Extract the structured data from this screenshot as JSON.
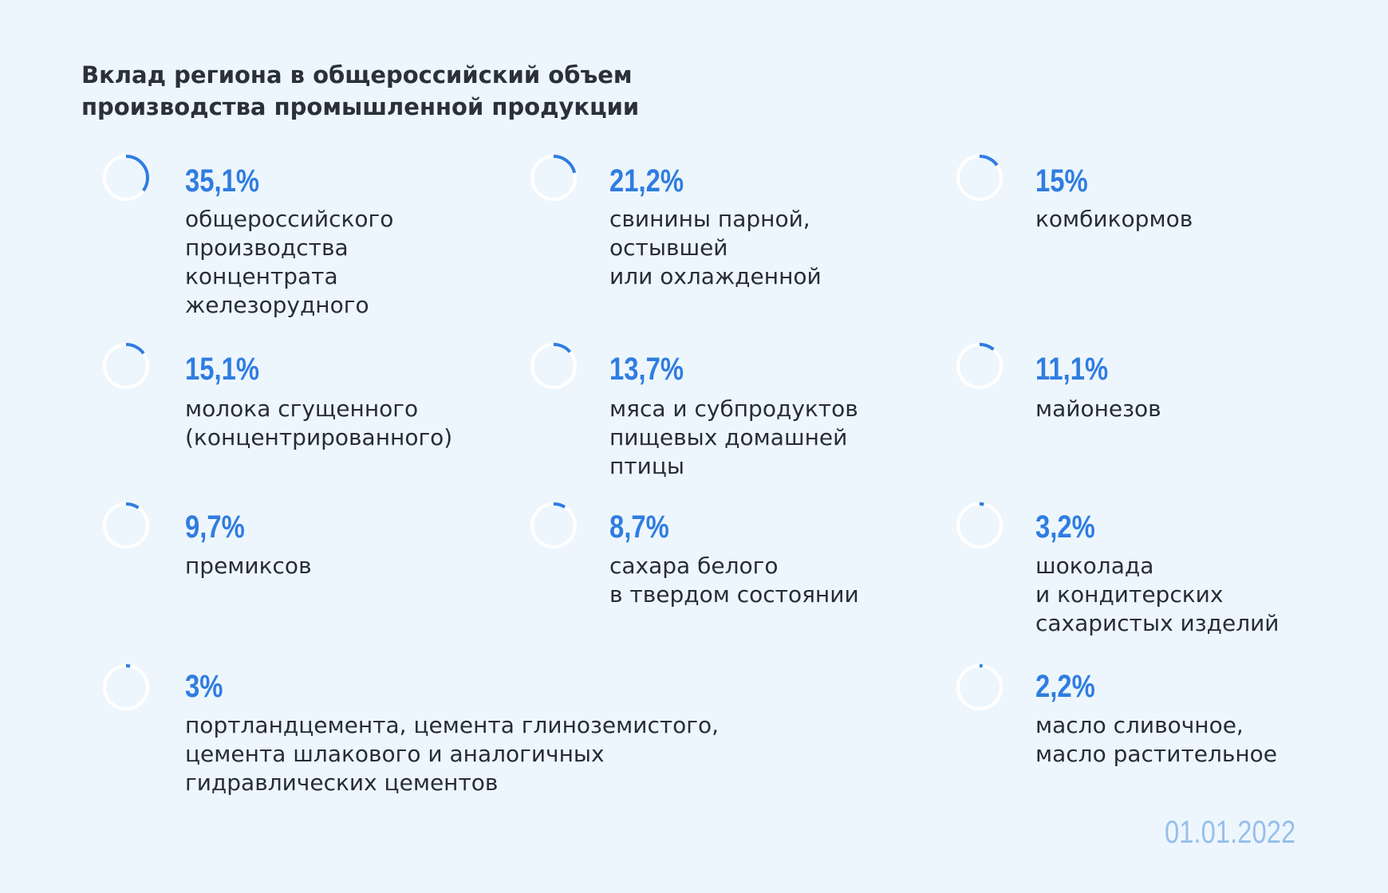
{
  "title": {
    "line1": "Вклад региона в общероссийский объем",
    "line2": "производства промышленной продукции"
  },
  "date": "01.01.2022",
  "colors": {
    "accent": "#2f7de1",
    "ring_track": "#ffffff",
    "date": "#96bfec",
    "background": "#eef6fd"
  },
  "chart_data": {
    "type": "pie",
    "title": "Вклад региона в общероссийский объем производства промышленной продукции",
    "items": [
      {
        "value": 35.1,
        "value_label": "35,1%",
        "label_lines": [
          "общероссийского",
          "производства",
          "концентрата",
          "железорудного"
        ]
      },
      {
        "value": 21.2,
        "value_label": "21,2%",
        "label_lines": [
          "свинины парной,",
          "остывшей",
          "или охлажденной"
        ]
      },
      {
        "value": 15.0,
        "value_label": "15%",
        "label_lines": [
          "комбикормов"
        ]
      },
      {
        "value": 15.1,
        "value_label": "15,1%",
        "label_lines": [
          "молока сгущенного",
          "(концентрированного)"
        ]
      },
      {
        "value": 13.7,
        "value_label": "13,7%",
        "label_lines": [
          "мяса и субпродуктов",
          "пищевых домашней",
          "птицы"
        ]
      },
      {
        "value": 11.1,
        "value_label": "11,1%",
        "label_lines": [
          "майонезов"
        ]
      },
      {
        "value": 9.7,
        "value_label": "9,7%",
        "label_lines": [
          "премиксов"
        ]
      },
      {
        "value": 8.7,
        "value_label": "8,7%",
        "label_lines": [
          "сахара белого",
          "в твердом состоянии"
        ]
      },
      {
        "value": 3.2,
        "value_label": "3,2%",
        "label_lines": [
          "шоколада",
          "и кондитерских",
          "сахаристых изделий"
        ]
      },
      {
        "value": 3.0,
        "value_label": "3%",
        "label_lines": [
          "портландцемента, цемента глиноземистого,",
          "цемента шлакового и аналогичных",
          "гидравлических цементов"
        ]
      },
      {
        "value": 2.2,
        "value_label": "2,2%",
        "label_lines": [
          "масло сливочное,",
          "масло растительное"
        ]
      }
    ]
  }
}
